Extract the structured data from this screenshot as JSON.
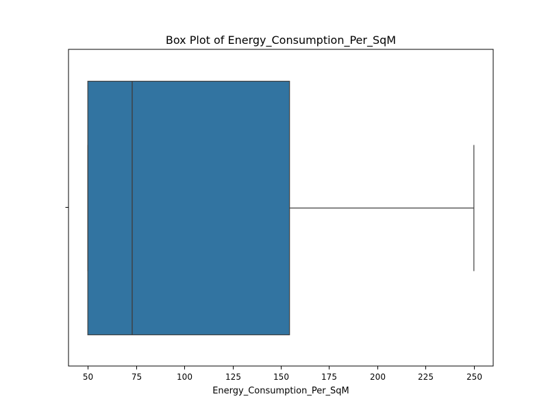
{
  "chart_data": {
    "type": "box",
    "title": "Box Plot of Energy_Consumption_Per_SqM",
    "xlabel": "Energy_Consumption_Per_SqM",
    "ylabel": "",
    "orientation": "horizontal",
    "xlim": [
      40,
      260
    ],
    "x_ticks": [
      50,
      75,
      100,
      125,
      150,
      175,
      200,
      225,
      250
    ],
    "grid": false,
    "box": {
      "whisker_low": 50,
      "q1": 50,
      "median": 73,
      "q3": 154.5,
      "whisker_high": 250
    },
    "colors": {
      "box_fill": "#3274a1",
      "box_edge": "#3f3f3f",
      "axis": "#000000",
      "background": "#ffffff"
    }
  }
}
